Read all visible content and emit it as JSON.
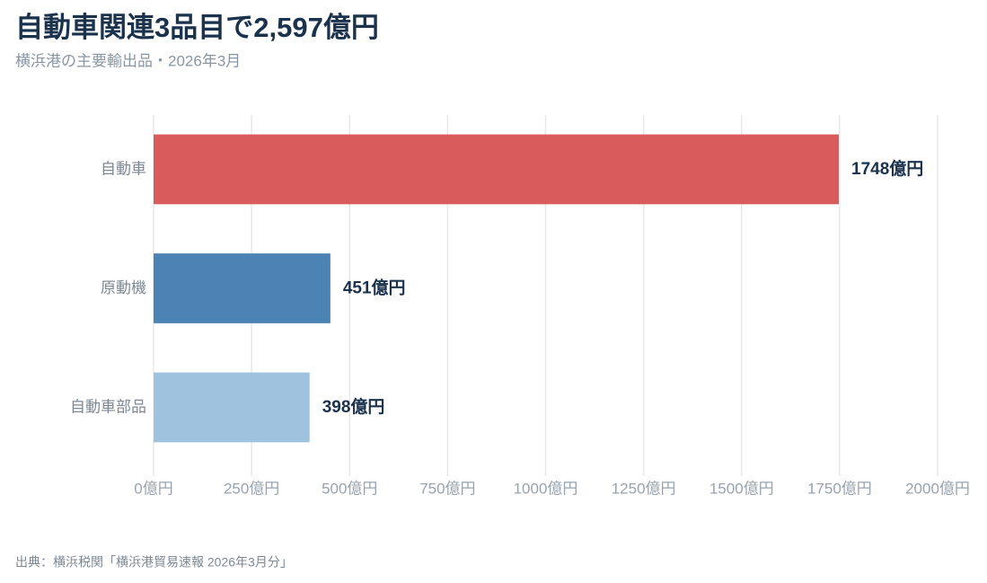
{
  "chart_data": {
    "type": "bar",
    "orientation": "horizontal",
    "title": "自動車関連3品目で2,597億円",
    "subtitle": "横浜港の主要輸出品・2026年3月",
    "source": "出典：横浜税関「横浜港貿易速報 2026年3月分」",
    "categories": [
      "自動車",
      "原動機",
      "自動車部品"
    ],
    "values": [
      1748,
      451,
      398
    ],
    "value_labels": [
      "1748億円",
      "451億円",
      "398億円"
    ],
    "colors": [
      "#d95b5b",
      "#4a83b4",
      "#9fc2de"
    ],
    "xlim": [
      0,
      2000
    ],
    "xticks": [
      {
        "value": 0,
        "label": "0億円"
      },
      {
        "value": 250,
        "label": "250億円"
      },
      {
        "value": 500,
        "label": "500億円"
      },
      {
        "value": 750,
        "label": "750億円"
      },
      {
        "value": 1000,
        "label": "1000億円"
      },
      {
        "value": 1250,
        "label": "1250億円"
      },
      {
        "value": 1500,
        "label": "1500億円"
      },
      {
        "value": 1750,
        "label": "1750億円"
      },
      {
        "value": 2000,
        "label": "2000億円"
      }
    ],
    "grid": true
  }
}
